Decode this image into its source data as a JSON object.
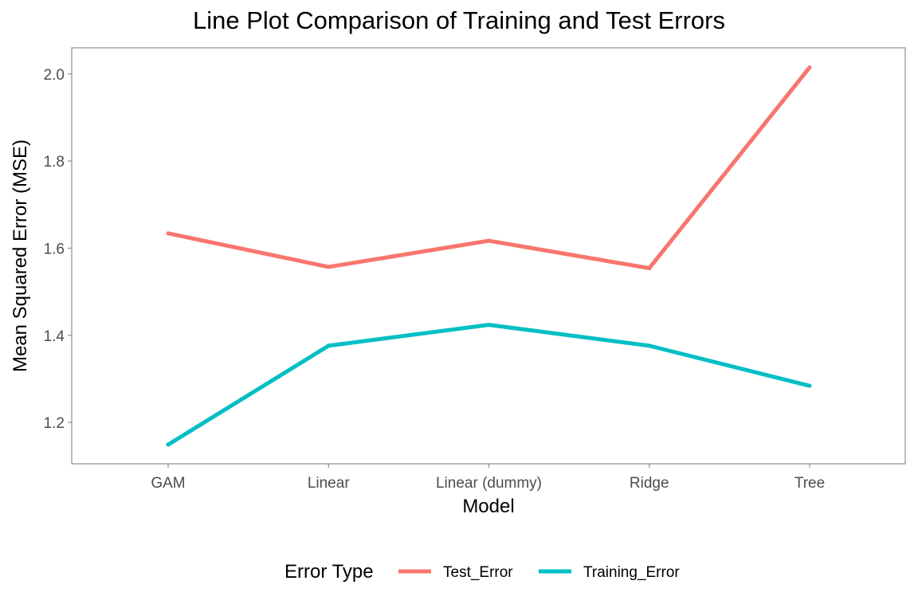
{
  "chart_data": {
    "type": "line",
    "title": "Line Plot Comparison of Training and Test Errors",
    "xlabel": "Model",
    "ylabel": "Mean Squared Error (MSE)",
    "categories": [
      "GAM",
      "Linear",
      "Linear (dummy)",
      "Ridge",
      "Tree"
    ],
    "ylim": [
      1.105,
      2.06
    ],
    "yticks": [
      1.2,
      1.4,
      1.6,
      1.8,
      2.0
    ],
    "ytick_labels": [
      "1.2",
      "1.4",
      "1.6",
      "1.8",
      "2.0"
    ],
    "grid": false,
    "legend": {
      "title": "Error Type",
      "position": "bottom"
    },
    "series": [
      {
        "name": "Test_Error",
        "color": "#F8766D",
        "values": [
          1.634,
          1.557,
          1.617,
          1.554,
          2.015
        ]
      },
      {
        "name": "Training_Error",
        "color": "#00BFC4",
        "values": [
          1.149,
          1.376,
          1.424,
          1.376,
          1.284
        ]
      }
    ]
  }
}
